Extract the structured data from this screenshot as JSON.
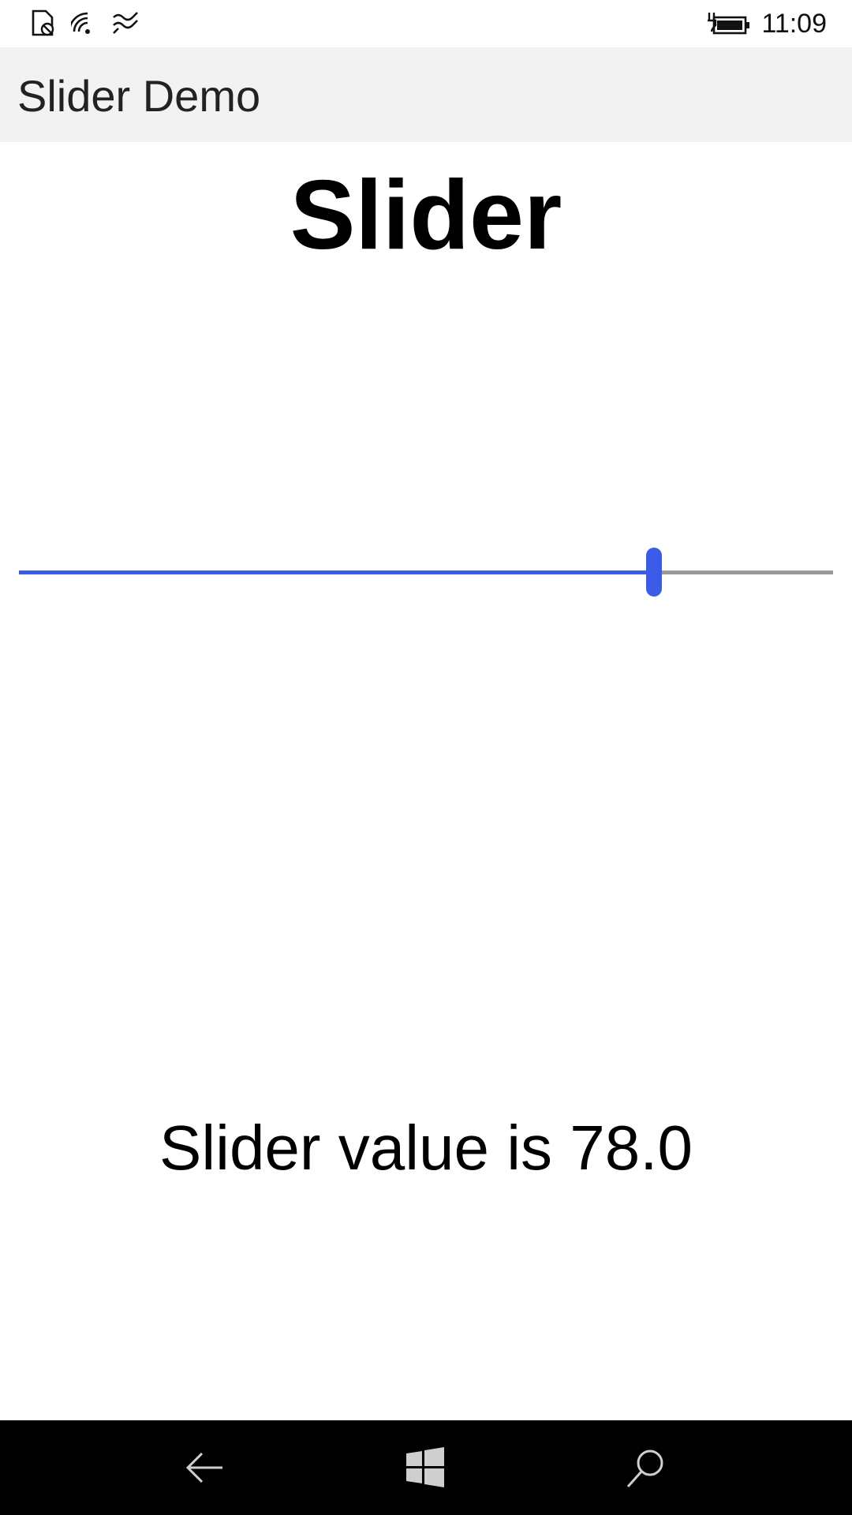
{
  "status_bar": {
    "time": "11:09",
    "icons": [
      "sim-blocked-icon",
      "wifi-icon",
      "data-signal-icon",
      "battery-charging-icon"
    ]
  },
  "app": {
    "title": "Slider Demo"
  },
  "page": {
    "heading": "Slider"
  },
  "slider": {
    "value": 78.0,
    "min": 0,
    "max": 100
  },
  "value_label": "Slider value is 78.0",
  "nav_bar": {
    "buttons": [
      "back-icon",
      "windows-start-icon",
      "search-icon"
    ]
  },
  "colors": {
    "accent": "#3b5ce8",
    "track": "#999999",
    "title_bar": "#f2f2f2",
    "nav_bar": "#000000"
  }
}
